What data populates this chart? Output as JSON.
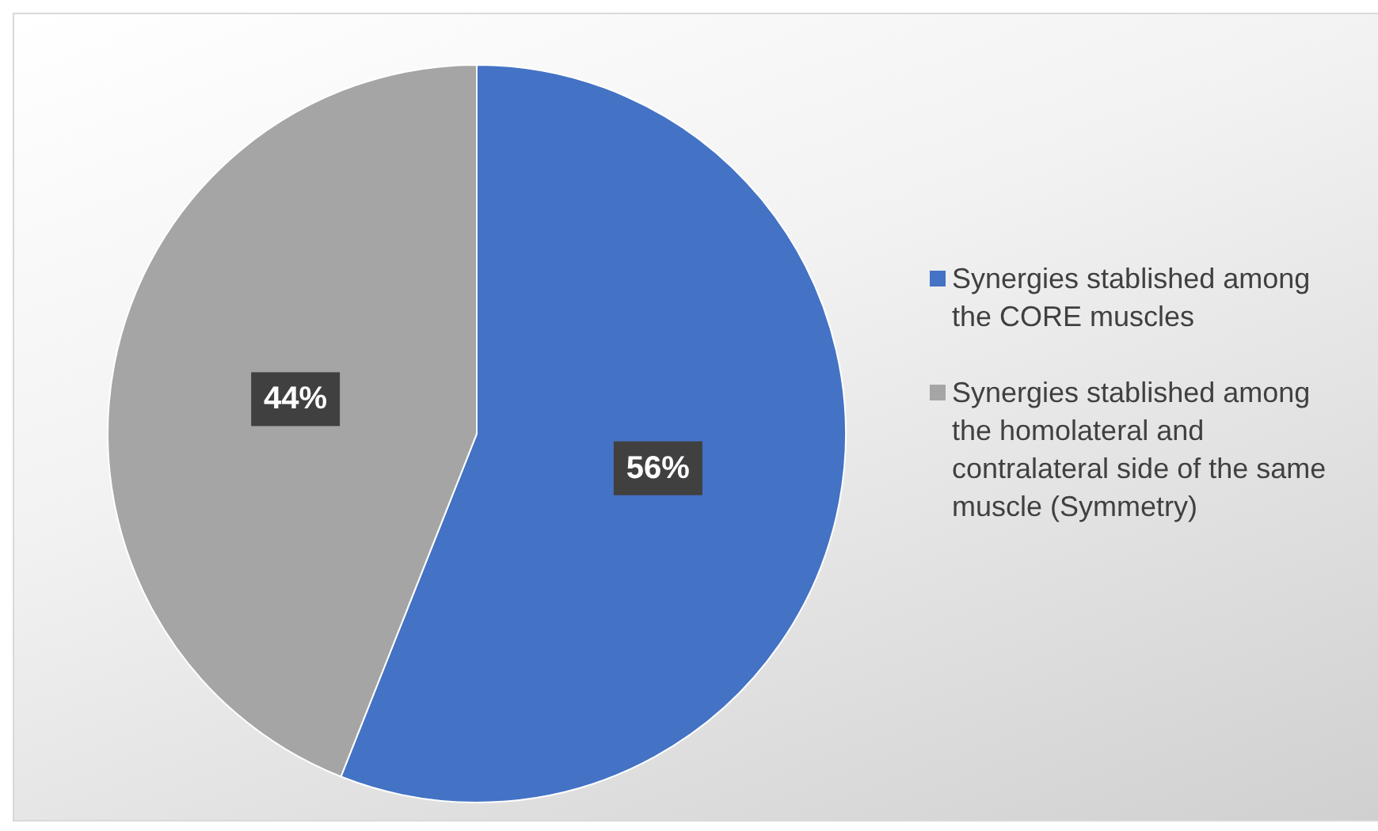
{
  "chart_data": {
    "type": "pie",
    "categories": [
      "Synergies stablished among the CORE muscles",
      "Synergies stablished among the homolateral and contralateral side of the same muscle (Symmetry)"
    ],
    "values": [
      56,
      44
    ],
    "colors": [
      "#4472c4",
      "#a5a5a5"
    ],
    "value_labels": [
      "56%",
      "44%"
    ],
    "legend": "right"
  }
}
